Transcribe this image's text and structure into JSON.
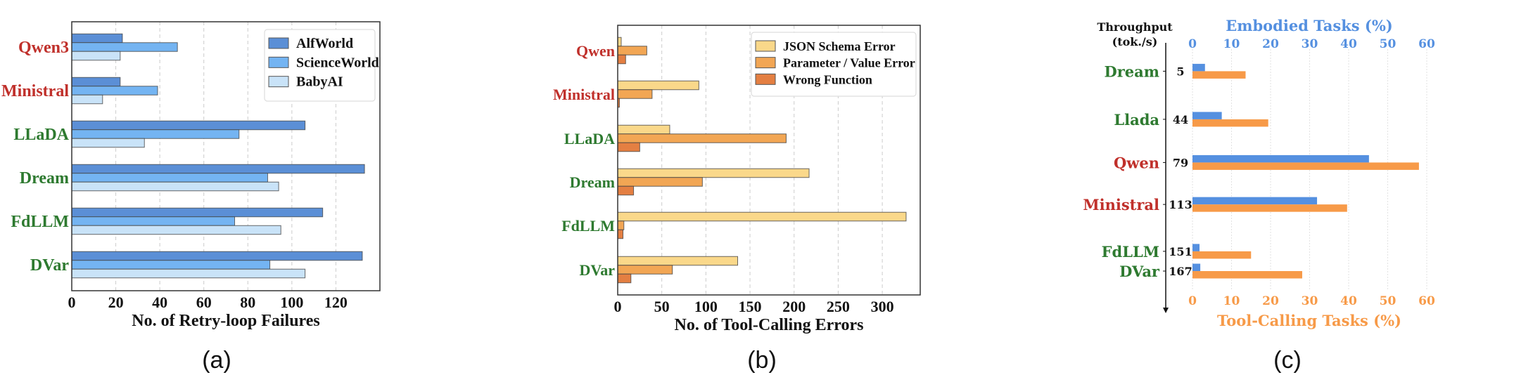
{
  "chart_data": [
    {
      "panel": "(a)",
      "type": "bar",
      "orientation": "horizontal",
      "categories": [
        "Qwen3",
        "Ministral",
        "LLaDA",
        "Dream",
        "FdLLM",
        "DVar"
      ],
      "category_colors": [
        "#c0302b",
        "#c0302b",
        "#2e7a30",
        "#2e7a30",
        "#2e7a30",
        "#2e7a30"
      ],
      "series": [
        {
          "name": "AlfWorld",
          "color": "#5b8fd6",
          "values": [
            23,
            22,
            106,
            133,
            114,
            132
          ]
        },
        {
          "name": "ScienceWorld",
          "color": "#74b4f2",
          "values": [
            48,
            39,
            76,
            89,
            74,
            90
          ]
        },
        {
          "name": "BabyAI",
          "color": "#c9e3f8",
          "values": [
            22,
            14,
            33,
            94,
            95,
            106
          ]
        }
      ],
      "xlabel": "No. of Retry-loop Failures",
      "xlim": [
        0,
        140
      ],
      "xticks": [
        0,
        20,
        40,
        60,
        80,
        100,
        120
      ],
      "grid": "x dashed",
      "legend": "top-right"
    },
    {
      "panel": "(b)",
      "type": "bar",
      "orientation": "horizontal",
      "categories": [
        "Qwen",
        "Ministral",
        "LLaDA",
        "Dream",
        "FdLLM",
        "DVar"
      ],
      "category_colors": [
        "#c0302b",
        "#c0302b",
        "#2e7a30",
        "#2e7a30",
        "#2e7a30",
        "#2e7a30"
      ],
      "series": [
        {
          "name": "JSON Schema Error",
          "color": "#fad88a",
          "values": [
            4,
            92,
            59,
            217,
            327,
            136
          ]
        },
        {
          "name": "Parameter / Value Error",
          "color": "#f2a654",
          "values": [
            33,
            39,
            191,
            96,
            7,
            62
          ]
        },
        {
          "name": "Wrong Function",
          "color": "#e47f42",
          "values": [
            9,
            2,
            25,
            18,
            6,
            15
          ]
        }
      ],
      "xlabel": "No. of Tool-Calling Errors",
      "xlim": [
        0,
        343
      ],
      "xticks": [
        0,
        50,
        100,
        150,
        200,
        250,
        300
      ],
      "grid": "x dashed",
      "legend": "top-right"
    },
    {
      "panel": "(c)",
      "type": "bar",
      "orientation": "horizontal",
      "ylabel": "Throughput\n(tok./s)",
      "ylabel_lines": [
        "Throughput",
        "(tok./s)"
      ],
      "categories": [
        "Dream",
        "Llada",
        "Qwen",
        "Ministral",
        "FdLLM",
        "DVar"
      ],
      "category_colors": [
        "#2e7a30",
        "#2e7a30",
        "#c0302b",
        "#c0302b",
        "#2e7a30",
        "#2e7a30"
      ],
      "throughput": [
        5,
        44,
        79,
        113,
        151,
        167
      ],
      "throughput_labels": [
        "5",
        "44",
        "79",
        "113",
        "151",
        "167"
      ],
      "ylim": [
        -18,
        200
      ],
      "series": [
        {
          "name": "Embodied Tasks (%)",
          "axis": "top",
          "color": "#5590e0",
          "values": [
            3.2,
            7.5,
            45.2,
            31.9,
            1.8,
            2.0
          ]
        },
        {
          "name": "Tool-Calling Tasks (%)",
          "axis": "bottom",
          "color": "#f79a48",
          "values": [
            13.6,
            19.4,
            58.0,
            39.6,
            15.0,
            28.1
          ]
        }
      ],
      "top_xlabel": "Embodied Tasks (%)",
      "bottom_xlabel": "Tool-Calling Tasks (%)",
      "xlim": [
        0,
        60
      ],
      "xticks": [
        0,
        10,
        20,
        30,
        40,
        50,
        60
      ],
      "grid": "x dotted"
    }
  ]
}
